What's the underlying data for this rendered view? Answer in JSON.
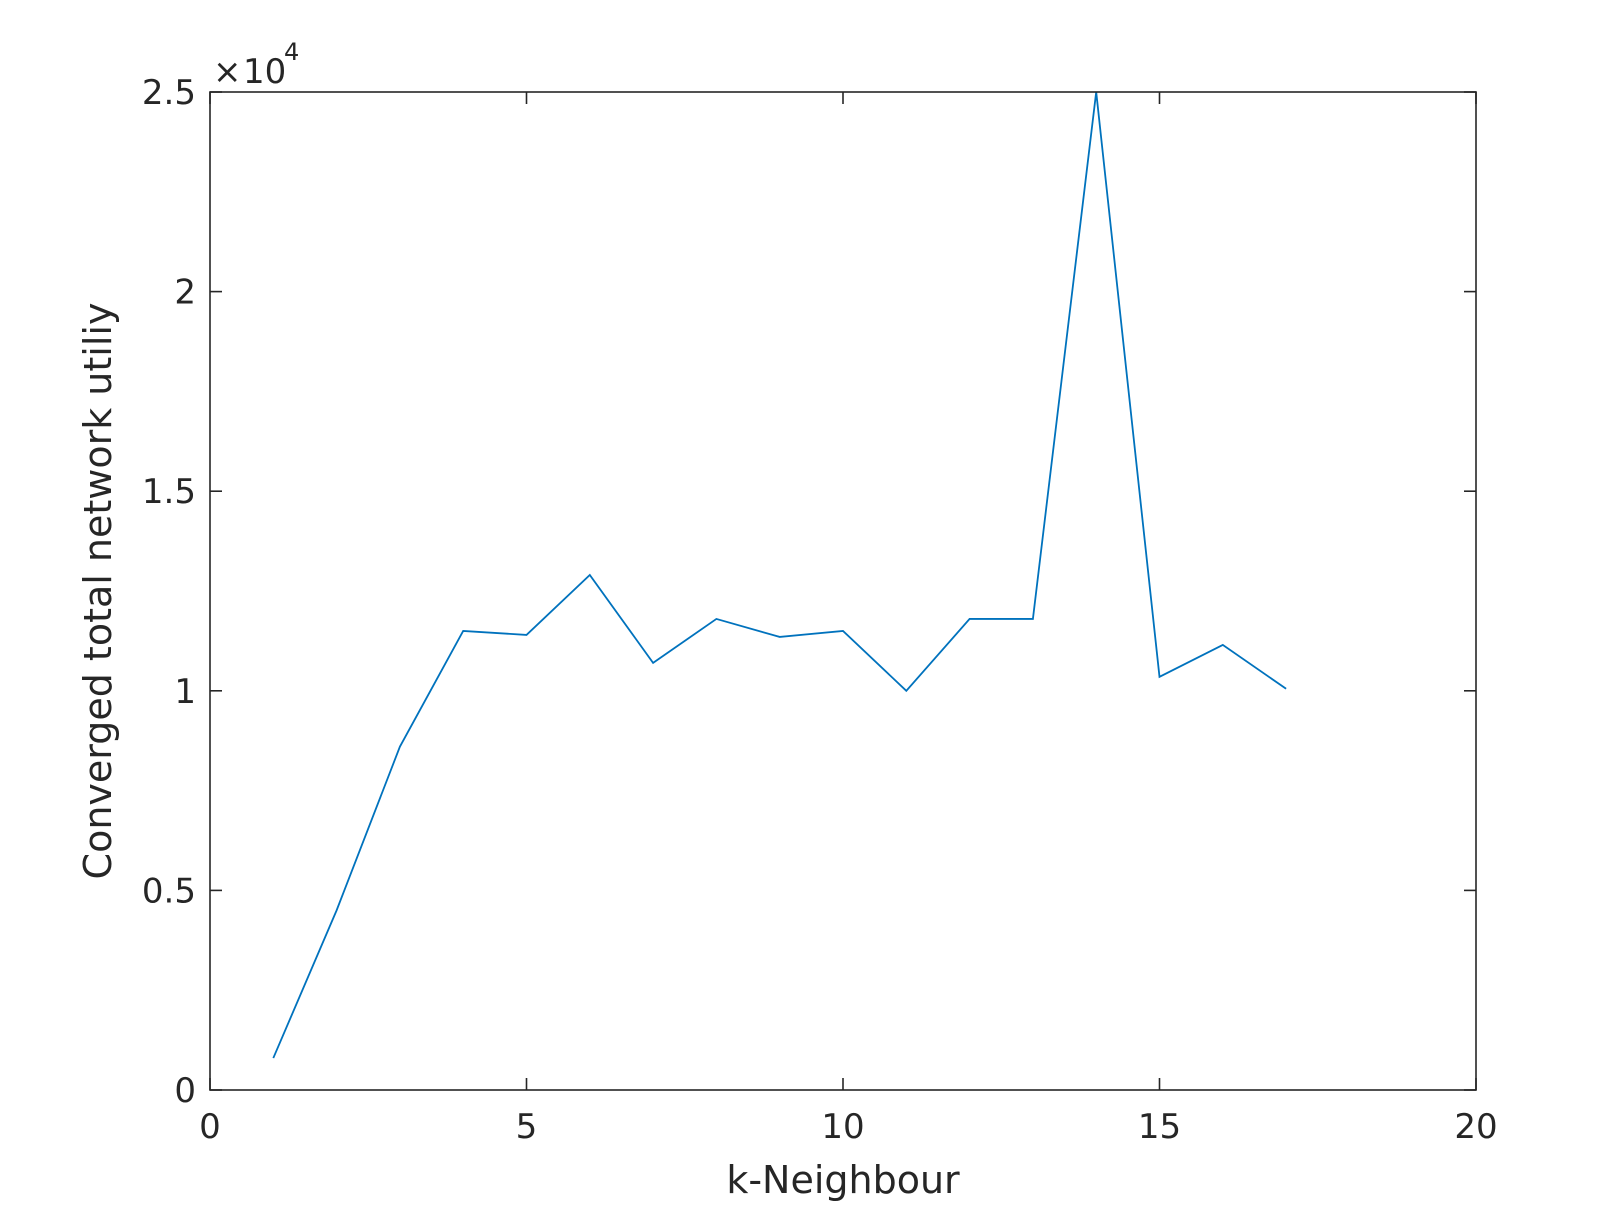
{
  "chart_data": {
    "type": "line",
    "title": "",
    "xlabel": "k-Neighbour",
    "ylabel": "Converged total network utiliy",
    "xlim": [
      0,
      20
    ],
    "ylim": [
      0,
      25000
    ],
    "x_ticks": [
      0,
      5,
      10,
      15,
      20
    ],
    "x_tick_labels": [
      "0",
      "5",
      "10",
      "15",
      "20"
    ],
    "y_ticks": [
      0,
      5000,
      10000,
      15000,
      20000,
      25000
    ],
    "y_tick_labels": [
      "0",
      "0.5",
      "1",
      "1.5",
      "2",
      "2.5"
    ],
    "y_exponent": {
      "times": "×",
      "base": "10",
      "power": "4"
    },
    "grid": false,
    "box": true,
    "series": [
      {
        "color": "#0072BD",
        "x": [
          1,
          2,
          3,
          4,
          5,
          6,
          7,
          8,
          9,
          10,
          11,
          12,
          13,
          14,
          15,
          16,
          17
        ],
        "y": [
          800,
          4500,
          8600,
          11500,
          11400,
          12900,
          10700,
          11800,
          11350,
          11500,
          10000,
          11800,
          11800,
          25000,
          10350,
          11150,
          10050
        ]
      }
    ]
  }
}
